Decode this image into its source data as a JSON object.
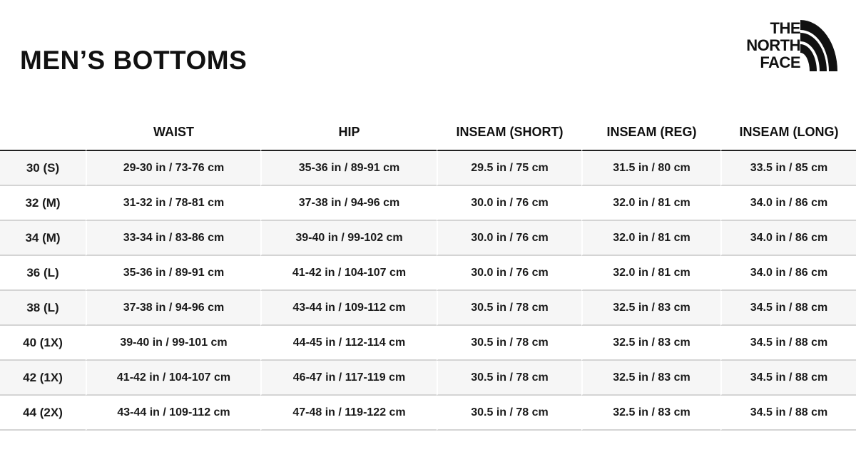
{
  "title": "MEN’S BOTTOMS",
  "logo": {
    "lines": [
      "THE",
      "NORTH",
      "FACE"
    ]
  },
  "table": {
    "headers": [
      "",
      "WAIST",
      "HIP",
      "INSEAM (SHORT)",
      "INSEAM (REG)",
      "INSEAM (LONG)"
    ],
    "rows": [
      [
        "30 (S)",
        "29-30 in / 73-76 cm",
        "35-36 in / 89-91 cm",
        "29.5 in / 75 cm",
        "31.5 in / 80 cm",
        "33.5 in / 85 cm"
      ],
      [
        "32 (M)",
        "31-32 in / 78-81 cm",
        "37-38 in / 94-96 cm",
        "30.0 in / 76 cm",
        "32.0 in / 81 cm",
        "34.0 in / 86 cm"
      ],
      [
        "34 (M)",
        "33-34 in / 83-86 cm",
        "39-40 in / 99-102 cm",
        "30.0 in / 76 cm",
        "32.0 in / 81 cm",
        "34.0 in / 86 cm"
      ],
      [
        "36 (L)",
        "35-36 in / 89-91 cm",
        "41-42 in / 104-107 cm",
        "30.0 in / 76 cm",
        "32.0 in / 81 cm",
        "34.0 in / 86 cm"
      ],
      [
        "38 (L)",
        "37-38 in / 94-96 cm",
        "43-44 in / 109-112 cm",
        "30.5 in / 78 cm",
        "32.5 in / 83 cm",
        "34.5 in / 88 cm"
      ],
      [
        "40 (1X)",
        "39-40 in / 99-101 cm",
        "44-45 in / 112-114 cm",
        "30.5 in / 78 cm",
        "32.5 in / 83 cm",
        "34.5 in / 88 cm"
      ],
      [
        "42 (1X)",
        "41-42 in / 104-107 cm",
        "46-47 in / 117-119 cm",
        "30.5 in / 78 cm",
        "32.5 in / 83 cm",
        "34.5 in / 88 cm"
      ],
      [
        "44 (2X)",
        "43-44 in / 109-112 cm",
        "47-48 in / 119-122 cm",
        "30.5 in / 78 cm",
        "32.5 in / 83 cm",
        "34.5 in / 88 cm"
      ]
    ]
  }
}
